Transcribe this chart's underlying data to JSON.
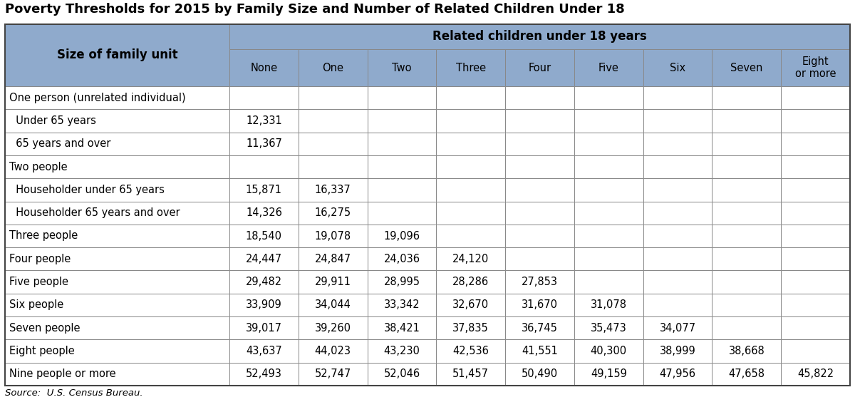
{
  "title": "Poverty Thresholds for 2015 by Family Size and Number of Related Children Under 18",
  "source": "Source:  U.S. Census Bureau.",
  "header_top": "Related children under 18 years",
  "header_left": "Size of family unit",
  "col_headers": [
    "None",
    "One",
    "Two",
    "Three",
    "Four",
    "Five",
    "Six",
    "Seven",
    "Eight\nor more"
  ],
  "rows": [
    {
      "label": "One person (unrelated individual)",
      "indent": 0,
      "values": [
        "",
        "",
        "",
        "",
        "",
        "",
        "",
        "",
        ""
      ]
    },
    {
      "label": "  Under 65 years",
      "indent": 0,
      "values": [
        "12,331",
        "",
        "",
        "",
        "",
        "",
        "",
        "",
        ""
      ]
    },
    {
      "label": "  65 years and over",
      "indent": 0,
      "values": [
        "11,367",
        "",
        "",
        "",
        "",
        "",
        "",
        "",
        ""
      ]
    },
    {
      "label": "Two people",
      "indent": 0,
      "values": [
        "",
        "",
        "",
        "",
        "",
        "",
        "",
        "",
        ""
      ]
    },
    {
      "label": "  Householder under 65 years",
      "indent": 0,
      "values": [
        "15,871",
        "16,337",
        "",
        "",
        "",
        "",
        "",
        "",
        ""
      ]
    },
    {
      "label": "  Householder 65 years and over",
      "indent": 0,
      "values": [
        "14,326",
        "16,275",
        "",
        "",
        "",
        "",
        "",
        "",
        ""
      ]
    },
    {
      "label": "Three people",
      "indent": 0,
      "values": [
        "18,540",
        "19,078",
        "19,096",
        "",
        "",
        "",
        "",
        "",
        ""
      ]
    },
    {
      "label": "Four people",
      "indent": 0,
      "values": [
        "24,447",
        "24,847",
        "24,036",
        "24,120",
        "",
        "",
        "",
        "",
        ""
      ]
    },
    {
      "label": "Five people",
      "indent": 0,
      "values": [
        "29,482",
        "29,911",
        "28,995",
        "28,286",
        "27,853",
        "",
        "",
        "",
        ""
      ]
    },
    {
      "label": "Six people",
      "indent": 0,
      "values": [
        "33,909",
        "34,044",
        "33,342",
        "32,670",
        "31,670",
        "31,078",
        "",
        "",
        ""
      ]
    },
    {
      "label": "Seven people",
      "indent": 0,
      "values": [
        "39,017",
        "39,260",
        "38,421",
        "37,835",
        "36,745",
        "35,473",
        "34,077",
        "",
        ""
      ]
    },
    {
      "label": "Eight people",
      "indent": 0,
      "values": [
        "43,637",
        "44,023",
        "43,230",
        "42,536",
        "41,551",
        "40,300",
        "38,999",
        "38,668",
        ""
      ]
    },
    {
      "label": "Nine people or more",
      "indent": 0,
      "values": [
        "52,493",
        "52,747",
        "52,046",
        "51,457",
        "50,490",
        "49,159",
        "47,956",
        "47,658",
        "45,822"
      ]
    }
  ],
  "header_bg": "#8faacc",
  "row_bg_white": "#ffffff",
  "border_color": "#888888",
  "title_color": "#000000",
  "text_color": "#000000",
  "header_text_color": "#000000",
  "fig_w": 12.0,
  "fig_h": 5.71,
  "dpi": 100
}
